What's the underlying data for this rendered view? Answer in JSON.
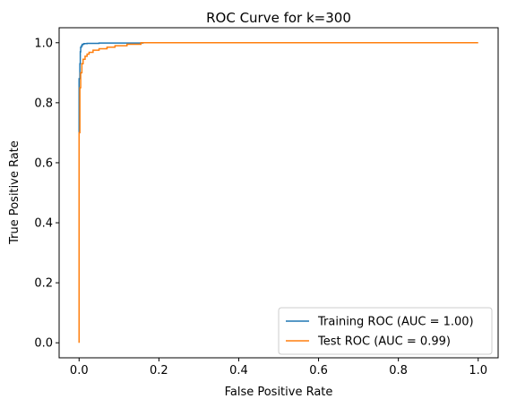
{
  "chart_data": {
    "type": "line",
    "title": "ROC Curve for k=300",
    "xlabel": "False Positive Rate",
    "ylabel": "True Positive Rate",
    "xlim": [
      -0.05,
      1.05
    ],
    "ylim": [
      -0.05,
      1.05
    ],
    "xticks": [
      0.0,
      0.2,
      0.4,
      0.6,
      0.8,
      1.0
    ],
    "xtick_labels": [
      "0.0",
      "0.2",
      "0.4",
      "0.6",
      "0.8",
      "1.0"
    ],
    "yticks": [
      0.0,
      0.2,
      0.4,
      0.6,
      0.8,
      1.0
    ],
    "ytick_labels": [
      "0.0",
      "0.2",
      "0.4",
      "0.6",
      "0.8",
      "1.0"
    ],
    "grid": false,
    "legend_position": "bottom-right",
    "series": [
      {
        "name": "Training ROC (AUC = 1.00)",
        "color": "#1f77b4",
        "x": [
          0.0,
          0.0,
          0.002,
          0.002,
          0.003,
          0.003,
          0.004,
          0.004,
          0.006,
          0.006,
          0.008,
          0.008,
          0.012,
          0.012,
          0.02,
          0.02,
          0.05,
          0.05,
          0.16,
          0.16,
          0.44
        ],
        "y": [
          0.7,
          0.88,
          0.88,
          0.93,
          0.93,
          0.97,
          0.97,
          0.985,
          0.985,
          0.99,
          0.99,
          0.995,
          0.995,
          0.997,
          0.997,
          0.998,
          0.998,
          0.999,
          0.999,
          1.0,
          1.0
        ]
      },
      {
        "name": "Test ROC (AUC = 0.99)",
        "color": "#ff7f0e",
        "x": [
          0.0,
          0.0,
          0.002,
          0.002,
          0.004,
          0.004,
          0.007,
          0.007,
          0.01,
          0.01,
          0.015,
          0.015,
          0.02,
          0.02,
          0.025,
          0.025,
          0.035,
          0.035,
          0.05,
          0.05,
          0.07,
          0.07,
          0.09,
          0.09,
          0.12,
          0.12,
          0.155,
          0.155,
          1.0
        ],
        "y": [
          0.0,
          0.7,
          0.7,
          0.85,
          0.85,
          0.9,
          0.9,
          0.93,
          0.93,
          0.945,
          0.945,
          0.955,
          0.955,
          0.962,
          0.962,
          0.968,
          0.968,
          0.975,
          0.975,
          0.98,
          0.98,
          0.985,
          0.985,
          0.99,
          0.99,
          0.995,
          0.995,
          1.0,
          1.0
        ]
      }
    ]
  }
}
